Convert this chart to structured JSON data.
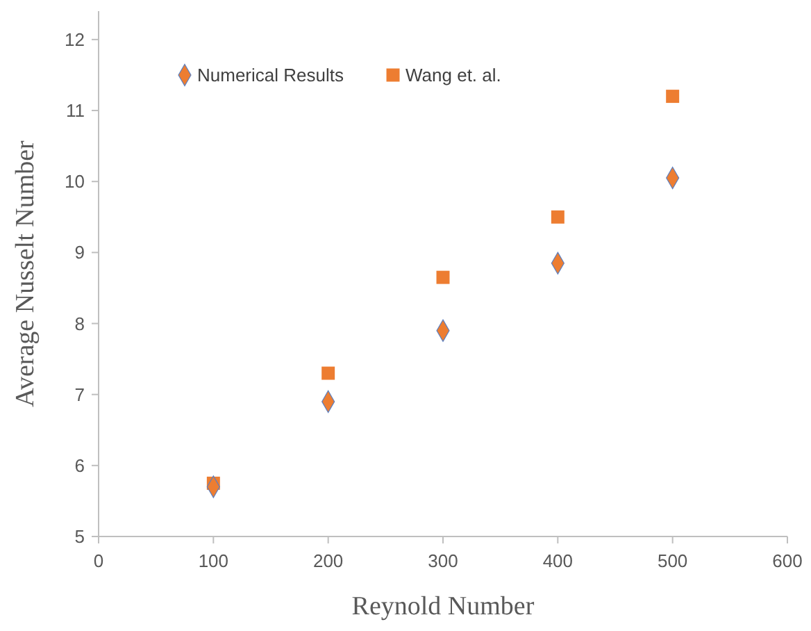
{
  "chart_data": {
    "type": "scatter",
    "xlabel": "Reynold Number",
    "ylabel": "Average Nusselt Number",
    "x": [
      100,
      200,
      300,
      400,
      500
    ],
    "series": [
      {
        "name": "Numerical Results",
        "color": "#ed7d31",
        "marker": "diamond",
        "values": [
          5.7,
          6.9,
          7.9,
          8.85,
          10.05
        ]
      },
      {
        "name": "Wang et. al.",
        "color": "#ed7d31",
        "marker": "square",
        "values": [
          5.75,
          7.3,
          8.65,
          9.5,
          11.2
        ]
      }
    ],
    "xlim": [
      0,
      600
    ],
    "xticks": [
      0,
      100,
      200,
      300,
      400,
      500,
      600
    ],
    "ylim": [
      5,
      12.4
    ],
    "yticks": [
      5,
      6,
      7,
      8,
      9,
      10,
      11,
      12
    ],
    "grid": false,
    "legend": "top left"
  }
}
